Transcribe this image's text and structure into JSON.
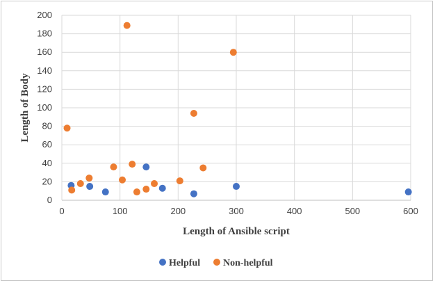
{
  "chart_data": {
    "type": "scatter",
    "title": "",
    "xlabel": "Length of Ansible script",
    "ylabel": "Length of Body",
    "xlim": [
      0,
      600
    ],
    "ylim": [
      0,
      200
    ],
    "x_ticks": [
      0,
      100,
      200,
      300,
      400,
      500,
      600
    ],
    "y_ticks": [
      0,
      20,
      40,
      60,
      80,
      100,
      120,
      140,
      160,
      180,
      200
    ],
    "grid": true,
    "legend_position": "bottom",
    "series": [
      {
        "name": "Helpful",
        "color": "#4472c4",
        "points": [
          {
            "x": 16,
            "y": 16
          },
          {
            "x": 48,
            "y": 15
          },
          {
            "x": 75,
            "y": 9
          },
          {
            "x": 145,
            "y": 36
          },
          {
            "x": 173,
            "y": 13
          },
          {
            "x": 227,
            "y": 7
          },
          {
            "x": 300,
            "y": 15
          },
          {
            "x": 596,
            "y": 9
          }
        ]
      },
      {
        "name": "Non-helpful",
        "color": "#ed7d31",
        "points": [
          {
            "x": 9,
            "y": 78
          },
          {
            "x": 17,
            "y": 11
          },
          {
            "x": 32,
            "y": 18
          },
          {
            "x": 47,
            "y": 24
          },
          {
            "x": 89,
            "y": 36
          },
          {
            "x": 104,
            "y": 22
          },
          {
            "x": 112,
            "y": 189
          },
          {
            "x": 121,
            "y": 39
          },
          {
            "x": 129,
            "y": 9
          },
          {
            "x": 145,
            "y": 12
          },
          {
            "x": 159,
            "y": 18
          },
          {
            "x": 203,
            "y": 21
          },
          {
            "x": 227,
            "y": 94
          },
          {
            "x": 243,
            "y": 35
          },
          {
            "x": 295,
            "y": 160
          }
        ]
      }
    ]
  }
}
